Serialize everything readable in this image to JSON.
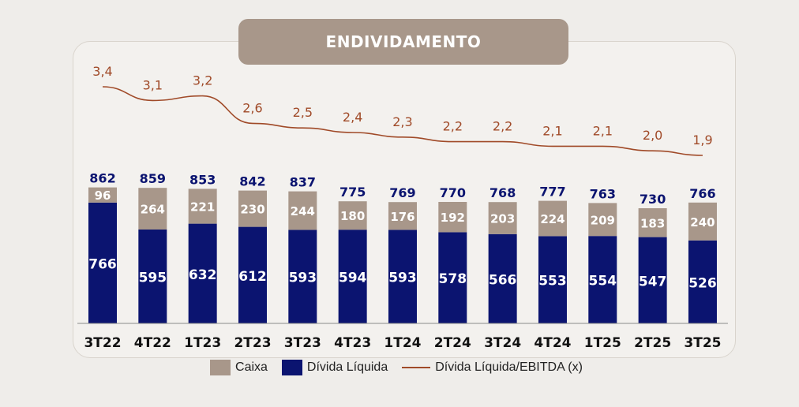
{
  "title": "ENDIVIDAMENTO",
  "colors": {
    "caixa": "#a8978a",
    "divida": "#0b1470",
    "line": "#a04a28",
    "total_label": "#0b1470",
    "line_label": "#a04a28"
  },
  "chart_data": {
    "type": "bar",
    "stacked": true,
    "categories": [
      "3T22",
      "4T22",
      "1T23",
      "2T23",
      "3T23",
      "4T23",
      "1T24",
      "2T24",
      "3T24",
      "4T24",
      "1T25",
      "2T25",
      "3T25"
    ],
    "series": [
      {
        "name": "Dívida Líquida",
        "values": [
          766,
          595,
          632,
          612,
          593,
          594,
          593,
          578,
          566,
          553,
          554,
          547,
          526
        ]
      },
      {
        "name": "Caixa",
        "values": [
          96,
          264,
          221,
          230,
          244,
          180,
          176,
          192,
          203,
          224,
          209,
          183,
          240
        ]
      }
    ],
    "totals": [
      862,
      859,
      853,
      842,
      837,
      775,
      769,
      770,
      768,
      777,
      763,
      730,
      766
    ],
    "line": {
      "name": "Dívida Líquida/EBITDA (x)",
      "values": [
        3.4,
        3.1,
        3.2,
        2.6,
        2.5,
        2.4,
        2.3,
        2.2,
        2.2,
        2.1,
        2.1,
        2.0,
        1.9
      ],
      "labels": [
        "3,4",
        "3,1",
        "3,2",
        "2,6",
        "2,5",
        "2,4",
        "2,3",
        "2,2",
        "2,2",
        "2,1",
        "2,1",
        "2,0",
        "1,9"
      ]
    },
    "legend": {
      "position": "bottom",
      "items": [
        "Caixa",
        "Dívida Líquida",
        "Dívida Líquida/EBITDA (x)"
      ]
    }
  }
}
